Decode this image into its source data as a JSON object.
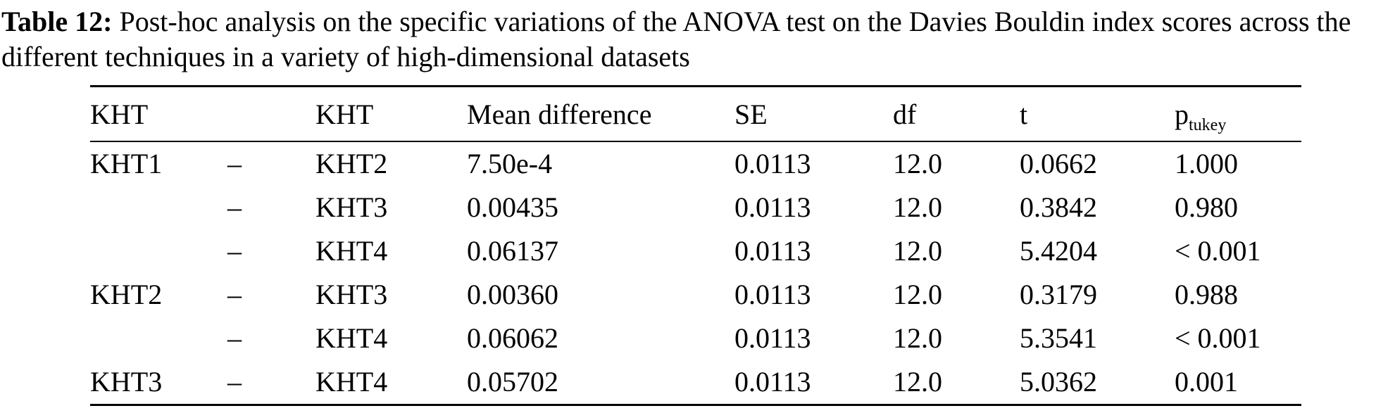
{
  "caption": {
    "label": "Table 12:",
    "text": " Post-hoc analysis on the specific variations of the ANOVA test on the Davies Bouldin index scores across the different techniques in a variety of high-dimensional datasets"
  },
  "table": {
    "headers": [
      "KHT",
      "",
      "KHT",
      "Mean difference",
      "SE",
      "df",
      "t"
    ],
    "p_header": {
      "base": "p",
      "subscript": "tukey"
    },
    "rows": [
      [
        "KHT1",
        "–",
        "KHT2",
        "7.50e-4",
        "0.0113",
        "12.0",
        "0.0662",
        "1.000"
      ],
      [
        "",
        "–",
        "KHT3",
        "0.00435",
        "0.0113",
        "12.0",
        "0.3842",
        "0.980"
      ],
      [
        "",
        "–",
        "KHT4",
        "0.06137",
        "0.0113",
        "12.0",
        "5.4204",
        "< 0.001"
      ],
      [
        "KHT2",
        "–",
        "KHT3",
        "0.00360",
        "0.0113",
        "12.0",
        "0.3179",
        "0.988"
      ],
      [
        "",
        "–",
        "KHT4",
        "0.06062",
        "0.0113",
        "12.0",
        "5.3541",
        "< 0.001"
      ],
      [
        "KHT3",
        "–",
        "KHT4",
        "0.05702",
        "0.0113",
        "12.0",
        "5.0362",
        "0.001"
      ]
    ]
  }
}
